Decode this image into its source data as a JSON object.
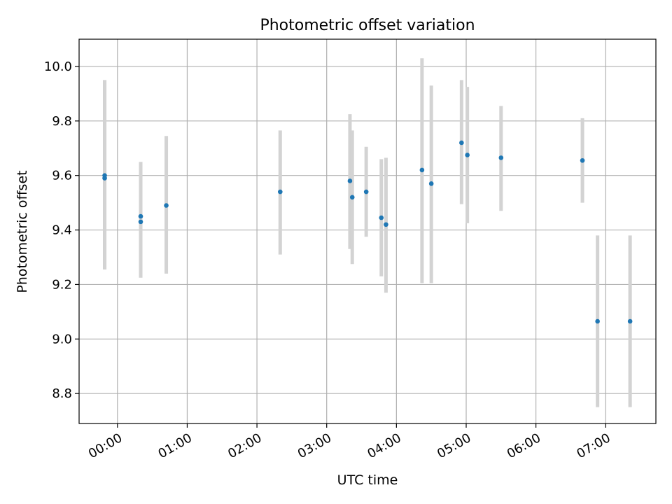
{
  "chart_data": {
    "type": "scatter",
    "title": "Photometric offset variation",
    "xlabel": "UTC time",
    "ylabel": "Photometric offset",
    "x_axis": "time (hours UTC)",
    "xlim": [
      -0.55,
      7.72
    ],
    "ylim": [
      8.69,
      10.1
    ],
    "x_ticks": [
      {
        "value": 0,
        "label": "00:00"
      },
      {
        "value": 1,
        "label": "01:00"
      },
      {
        "value": 2,
        "label": "02:00"
      },
      {
        "value": 3,
        "label": "03:00"
      },
      {
        "value": 4,
        "label": "04:00"
      },
      {
        "value": 5,
        "label": "05:00"
      },
      {
        "value": 6,
        "label": "06:00"
      },
      {
        "value": 7,
        "label": "07:00"
      }
    ],
    "y_ticks": [
      {
        "value": 8.8,
        "label": "8.8"
      },
      {
        "value": 9.0,
        "label": "9.0"
      },
      {
        "value": 9.2,
        "label": "9.2"
      },
      {
        "value": 9.4,
        "label": "9.4"
      },
      {
        "value": 9.6,
        "label": "9.6"
      },
      {
        "value": 9.8,
        "label": "9.8"
      },
      {
        "value": 10.0,
        "label": "10.0"
      }
    ],
    "grid": true,
    "marker_color": "#1f77b4",
    "errorbar_color": "#d3d3d3",
    "points": [
      {
        "time": "23:49",
        "y": 9.6,
        "ylow": 9.255,
        "yhigh": 9.95
      },
      {
        "time": "23:49",
        "y": 9.59,
        "ylow": 9.255,
        "yhigh": 9.95
      },
      {
        "time": "00:20",
        "y": 9.45,
        "ylow": 9.26,
        "yhigh": 9.65
      },
      {
        "time": "00:20",
        "y": 9.43,
        "ylow": 9.225,
        "yhigh": 9.64
      },
      {
        "time": "00:42",
        "y": 9.49,
        "ylow": 9.24,
        "yhigh": 9.745
      },
      {
        "time": "02:20",
        "y": 9.54,
        "ylow": 9.31,
        "yhigh": 9.765
      },
      {
        "time": "03:20",
        "y": 9.58,
        "ylow": 9.33,
        "yhigh": 9.825
      },
      {
        "time": "03:22",
        "y": 9.52,
        "ylow": 9.275,
        "yhigh": 9.765
      },
      {
        "time": "03:34",
        "y": 9.54,
        "ylow": 9.375,
        "yhigh": 9.705
      },
      {
        "time": "03:47",
        "y": 9.445,
        "ylow": 9.23,
        "yhigh": 9.66
      },
      {
        "time": "03:51",
        "y": 9.42,
        "ylow": 9.17,
        "yhigh": 9.665
      },
      {
        "time": "04:22",
        "y": 9.62,
        "ylow": 9.205,
        "yhigh": 10.03
      },
      {
        "time": "04:30",
        "y": 9.57,
        "ylow": 9.205,
        "yhigh": 9.93
      },
      {
        "time": "04:56",
        "y": 9.72,
        "ylow": 9.495,
        "yhigh": 9.95
      },
      {
        "time": "05:01",
        "y": 9.675,
        "ylow": 9.425,
        "yhigh": 9.925
      },
      {
        "time": "05:30",
        "y": 9.665,
        "ylow": 9.47,
        "yhigh": 9.855
      },
      {
        "time": "06:40",
        "y": 9.655,
        "ylow": 9.5,
        "yhigh": 9.81
      },
      {
        "time": "06:53",
        "y": 9.065,
        "ylow": 8.75,
        "yhigh": 9.38
      },
      {
        "time": "07:21",
        "y": 9.065,
        "ylow": 8.75,
        "yhigh": 9.38
      }
    ]
  }
}
